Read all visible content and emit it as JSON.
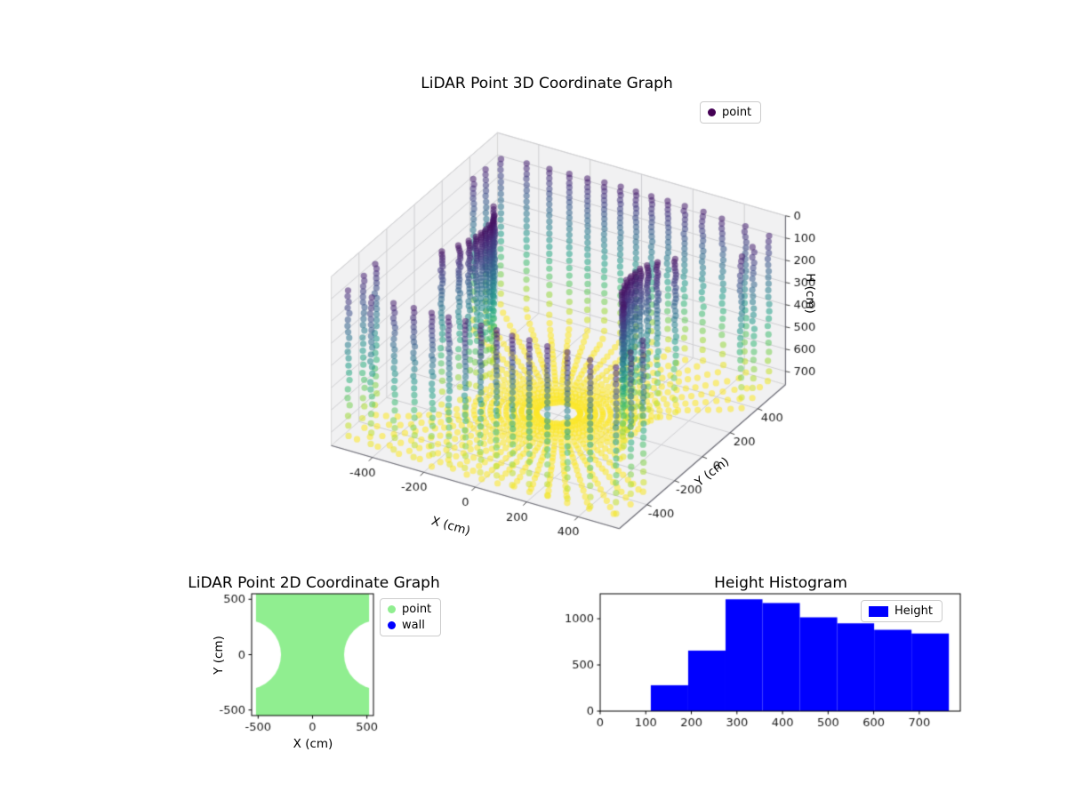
{
  "figure": {
    "background": "#ffffff"
  },
  "chart_data": [
    {
      "type": "scatter3d",
      "title": "LiDAR Point 3D Coordinate Graph",
      "xlabel": "X (cm)",
      "ylabel": "Y (cm)",
      "zlabel": "H (cm)",
      "xticks": [
        -400,
        -200,
        0,
        200,
        400
      ],
      "yticks": [
        -400,
        -200,
        0,
        200,
        400
      ],
      "zticks": [
        0,
        100,
        200,
        300,
        400,
        500,
        600,
        700
      ],
      "xlim": [
        -560,
        560
      ],
      "ylim": [
        -600,
        600
      ],
      "zlim": [
        0,
        760
      ],
      "z_axis_inverted": true,
      "colormap": "viridis",
      "marker_alpha": 0.55,
      "legend": [
        {
          "label": "point",
          "color": "#440154"
        }
      ],
      "point_model": {
        "description": "LiDAR scan point cloud of a room: square footprint with circular notches on the +x and -x walls; sensor at ceiling center (H=0); floor at H=750 cm; points colored by height H with viridis",
        "room_half_x": 520,
        "room_half_y": 560,
        "notch_center_x": 600,
        "notch_radius": 310,
        "floor_h": 750,
        "n_azimuth": 58,
        "n_elevation": 42,
        "elevation_min_rad": 0.1,
        "elevation_max_rad": 1.47
      }
    },
    {
      "type": "scatter2d_region",
      "title": "LiDAR Point 2D Coordinate Graph",
      "xlabel": "X (cm)",
      "ylabel": "Y (cm)",
      "xticks": [
        -500,
        0,
        500
      ],
      "yticks": [
        -500,
        0,
        500
      ],
      "xlim": [
        -560,
        560
      ],
      "ylim": [
        -550,
        550
      ],
      "legend": [
        {
          "label": "point",
          "color": "#90ee90"
        },
        {
          "label": "wall",
          "color": "#0000ff"
        }
      ],
      "region": {
        "half_x": 520,
        "half_y": 560,
        "notch_center_x": 600,
        "notch_radius": 310,
        "fill": "#90ee90"
      }
    },
    {
      "type": "bar",
      "title": "Height Histogram",
      "series_name": "Height",
      "color": "#0000ff",
      "bin_edges": [
        111,
        193,
        275,
        356,
        438,
        520,
        601,
        683,
        765
      ],
      "counts": [
        280,
        655,
        1210,
        1170,
        1015,
        950,
        880,
        840
      ],
      "xticks": [
        0,
        100,
        200,
        300,
        400,
        500,
        600,
        700
      ],
      "yticks": [
        0,
        500,
        1000
      ],
      "xlim": [
        0,
        790
      ],
      "ylim": [
        0,
        1270
      ],
      "legend": [
        {
          "label": "Height",
          "color": "#0000ff"
        }
      ]
    }
  ]
}
